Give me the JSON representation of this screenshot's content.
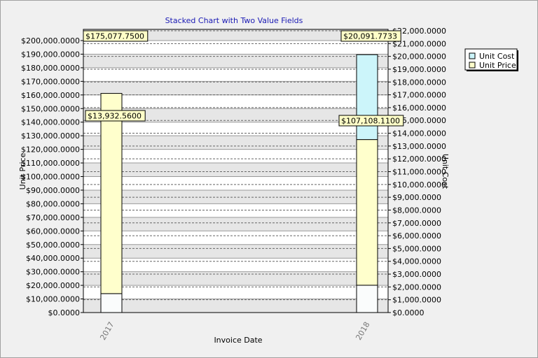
{
  "chart_data": {
    "type": "bar",
    "stacked": true,
    "title": "Stacked Chart with Two Value Fields",
    "xlabel": "Invoice Date",
    "ylabel_left": "Unit Price",
    "ylabel_right": "Unit Cost",
    "categories": [
      "2017",
      "2018"
    ],
    "ylim_left": [
      0,
      200000
    ],
    "ylim_right": [
      0,
      22000
    ],
    "yticks_left": [
      "$0.0000",
      "$10,000.0000",
      "$20,000.0000",
      "$30,000.0000",
      "$40,000.0000",
      "$50,000.0000",
      "$60,000.0000",
      "$70,000.0000",
      "$80,000.0000",
      "$90,000.0000",
      "$100,000.0000",
      "$110,000.0000",
      "$120,000.0000",
      "$130,000.0000",
      "$140,000.0000",
      "$150,000.0000",
      "$160,000.0000",
      "$170,000.0000",
      "$180,000.0000",
      "$190,000.0000",
      "$200,000.0000"
    ],
    "yticks_right": [
      "$0.0000",
      "$1,000.0000",
      "$2,000.0000",
      "$3,000.0000",
      "$4,000.0000",
      "$5,000.0000",
      "$6,000.0000",
      "$7,000.0000",
      "$8,000.0000",
      "$9,000.0000",
      "$10,000.0000",
      "$11,000.0000",
      "$12,000.0000",
      "$13,000.0000",
      "$14,000.0000",
      "$15,000.0000",
      "$16,000.0000",
      "$17,000.0000",
      "$18,000.0000",
      "$19,000.0000",
      "$20,000.0000",
      "$21,000.0000",
      "$22,000.0000"
    ],
    "series": [
      {
        "name": "Unit Cost",
        "axis": "right",
        "values": [
          13932.56,
          20091.7733
        ],
        "labels": [
          "$13,932.5600",
          "$20,091.7733"
        ],
        "color": "#ccf5fa"
      },
      {
        "name": "Unit Price",
        "axis": "left",
        "values": [
          175077.75,
          107108.11
        ],
        "labels": [
          "$175,077.7500",
          "$107,108.1100"
        ],
        "color": "#ffffcc"
      }
    ],
    "grid": true,
    "legend": "top-right"
  }
}
